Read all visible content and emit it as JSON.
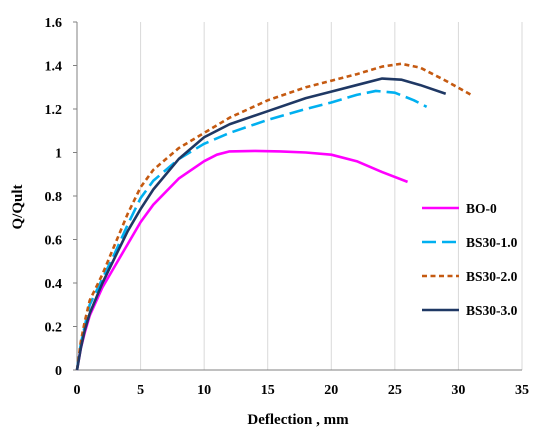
{
  "chart_data": {
    "type": "line",
    "title": "",
    "xlabel": "Deflection , mm",
    "ylabel": "Q/Qult",
    "xlim": [
      0,
      35
    ],
    "ylim": [
      0,
      1.6
    ],
    "xticks": [
      "0",
      "5",
      "10",
      "15",
      "20",
      "25",
      "30",
      "35"
    ],
    "yticks": [
      "0",
      "0.2",
      "0.4",
      "0.6",
      "0.8",
      "1",
      "1.2",
      "1.4",
      "1.6"
    ],
    "grid": "vertical",
    "legend_position": "right",
    "series": [
      {
        "name": "BO-0",
        "color": "#ff00ff",
        "dash": "solid",
        "points": [
          [
            0,
            0
          ],
          [
            0.3,
            0.1
          ],
          [
            0.6,
            0.17
          ],
          [
            1,
            0.25
          ],
          [
            2,
            0.38
          ],
          [
            3,
            0.48
          ],
          [
            4,
            0.58
          ],
          [
            5,
            0.68
          ],
          [
            6,
            0.76
          ],
          [
            8,
            0.88
          ],
          [
            10,
            0.96
          ],
          [
            11,
            0.99
          ],
          [
            12,
            1.005
          ],
          [
            14,
            1.007
          ],
          [
            16,
            1.005
          ],
          [
            18,
            1.0
          ],
          [
            20,
            0.99
          ],
          [
            22,
            0.96
          ],
          [
            24,
            0.91
          ],
          [
            26,
            0.865
          ]
        ]
      },
      {
        "name": "BS30-1.0",
        "color": "#00b0f0",
        "dash": "long-dash",
        "points": [
          [
            0,
            0
          ],
          [
            0.3,
            0.12
          ],
          [
            0.6,
            0.2
          ],
          [
            1,
            0.3
          ],
          [
            2,
            0.42
          ],
          [
            3,
            0.54
          ],
          [
            4,
            0.67
          ],
          [
            5,
            0.79
          ],
          [
            6,
            0.87
          ],
          [
            8,
            0.97
          ],
          [
            10,
            1.04
          ],
          [
            12,
            1.09
          ],
          [
            15,
            1.15
          ],
          [
            18,
            1.2
          ],
          [
            20,
            1.23
          ],
          [
            22,
            1.265
          ],
          [
            23.5,
            1.283
          ],
          [
            25,
            1.275
          ],
          [
            26.5,
            1.24
          ],
          [
            27.5,
            1.21
          ]
        ]
      },
      {
        "name": "BS30-2.0",
        "color": "#c55a11",
        "dash": "short-dash",
        "points": [
          [
            0,
            0
          ],
          [
            0.3,
            0.13
          ],
          [
            0.6,
            0.22
          ],
          [
            1,
            0.32
          ],
          [
            2,
            0.44
          ],
          [
            3,
            0.58
          ],
          [
            4,
            0.72
          ],
          [
            5,
            0.84
          ],
          [
            6,
            0.92
          ],
          [
            8,
            1.02
          ],
          [
            10,
            1.09
          ],
          [
            12,
            1.16
          ],
          [
            15,
            1.24
          ],
          [
            18,
            1.3
          ],
          [
            20,
            1.33
          ],
          [
            22,
            1.36
          ],
          [
            24,
            1.395
          ],
          [
            25.5,
            1.408
          ],
          [
            27,
            1.39
          ],
          [
            29,
            1.33
          ],
          [
            31,
            1.265
          ]
        ]
      },
      {
        "name": "BS30-3.0",
        "color": "#1f3864",
        "dash": "solid",
        "points": [
          [
            0,
            0
          ],
          [
            0.3,
            0.1
          ],
          [
            0.6,
            0.18
          ],
          [
            1,
            0.26
          ],
          [
            2,
            0.4
          ],
          [
            3,
            0.52
          ],
          [
            4,
            0.64
          ],
          [
            5,
            0.74
          ],
          [
            6,
            0.83
          ],
          [
            8,
            0.97
          ],
          [
            10,
            1.07
          ],
          [
            12,
            1.13
          ],
          [
            15,
            1.19
          ],
          [
            18,
            1.25
          ],
          [
            20,
            1.28
          ],
          [
            22,
            1.31
          ],
          [
            24,
            1.34
          ],
          [
            25.5,
            1.335
          ],
          [
            27,
            1.31
          ],
          [
            29,
            1.27
          ]
        ]
      }
    ]
  }
}
